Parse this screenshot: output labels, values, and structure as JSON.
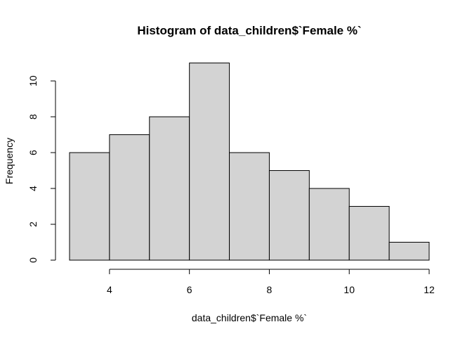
{
  "chart_data": {
    "type": "bar",
    "title": "Histogram of data_children$`Female %`",
    "xlabel": "data_children$`Female %`",
    "ylabel": "Frequency",
    "bins": [
      {
        "start": 3,
        "end": 4,
        "count": 6
      },
      {
        "start": 4,
        "end": 5,
        "count": 7
      },
      {
        "start": 5,
        "end": 6,
        "count": 8
      },
      {
        "start": 6,
        "end": 7,
        "count": 11
      },
      {
        "start": 7,
        "end": 8,
        "count": 6
      },
      {
        "start": 8,
        "end": 9,
        "count": 5
      },
      {
        "start": 9,
        "end": 10,
        "count": 4
      },
      {
        "start": 10,
        "end": 11,
        "count": 3
      },
      {
        "start": 11,
        "end": 12,
        "count": 1
      }
    ],
    "x_ticks": [
      4,
      6,
      8,
      10,
      12
    ],
    "x_tick_labels": [
      "4",
      "6",
      "8",
      "10",
      "12"
    ],
    "y_ticks": [
      0,
      2,
      4,
      6,
      8,
      10
    ],
    "y_tick_labels": [
      "0",
      "2",
      "4",
      "6",
      "8",
      "10"
    ],
    "xlim": [
      3,
      12
    ],
    "ylim": [
      0,
      11
    ],
    "bar_fill": "#d3d3d3",
    "bar_stroke": "#000000",
    "grid": false
  }
}
